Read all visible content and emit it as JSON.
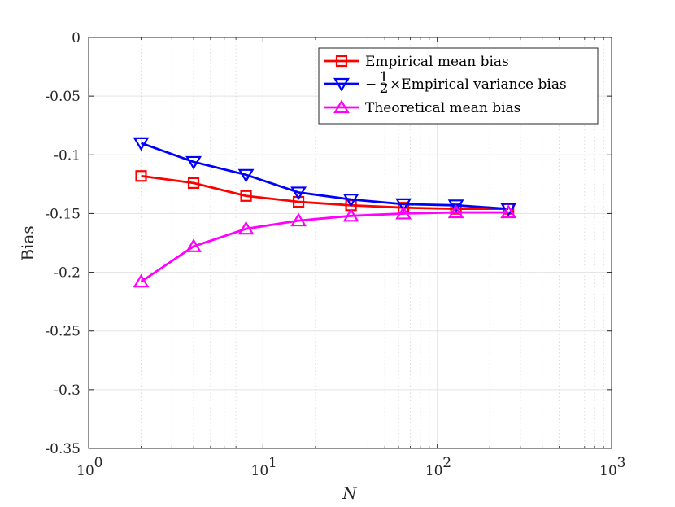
{
  "chart_data": {
    "type": "line",
    "title": "",
    "xlabel": "N",
    "ylabel": "Bias",
    "xscale": "log",
    "xlim": [
      1,
      1000
    ],
    "ylim": [
      -0.35,
      0
    ],
    "grid": true,
    "legend_position": "top-right",
    "x": [
      2,
      4,
      8,
      16,
      32,
      64,
      128,
      256
    ],
    "xticks": [
      {
        "base": "10",
        "exp": "0",
        "value": 1
      },
      {
        "base": "10",
        "exp": "1",
        "value": 10
      },
      {
        "base": "10",
        "exp": "2",
        "value": 100
      },
      {
        "base": "10",
        "exp": "3",
        "value": 1000
      }
    ],
    "yticks": [
      {
        "label": "0",
        "value": 0
      },
      {
        "label": "-0.05",
        "value": -0.05
      },
      {
        "label": "-0.1",
        "value": -0.1
      },
      {
        "label": "-0.15",
        "value": -0.15
      },
      {
        "label": "-0.2",
        "value": -0.2
      },
      {
        "label": "-0.25",
        "value": -0.25
      },
      {
        "label": "-0.3",
        "value": -0.3
      },
      {
        "label": "-0.35",
        "value": -0.35
      }
    ],
    "series": [
      {
        "name": "Empirical mean bias",
        "color": "#ff0000",
        "marker": "square",
        "values": [
          -0.118,
          -0.124,
          -0.135,
          -0.14,
          -0.143,
          -0.145,
          -0.146,
          -0.146
        ]
      },
      {
        "name": "−½×Empirical variance bias",
        "legend_prefix": "−",
        "legend_num": "1",
        "legend_den": "2",
        "legend_suffix": "×Empirical variance bias",
        "color": "#0000ff",
        "marker": "triangle-down",
        "values": [
          -0.09,
          -0.106,
          -0.117,
          -0.132,
          -0.138,
          -0.142,
          -0.143,
          -0.146
        ]
      },
      {
        "name": "Theoretical mean bias",
        "color": "#ff00ff",
        "marker": "triangle-up",
        "values": [
          -0.208,
          -0.178,
          -0.163,
          -0.156,
          -0.152,
          -0.15,
          -0.149,
          -0.149
        ]
      }
    ]
  }
}
